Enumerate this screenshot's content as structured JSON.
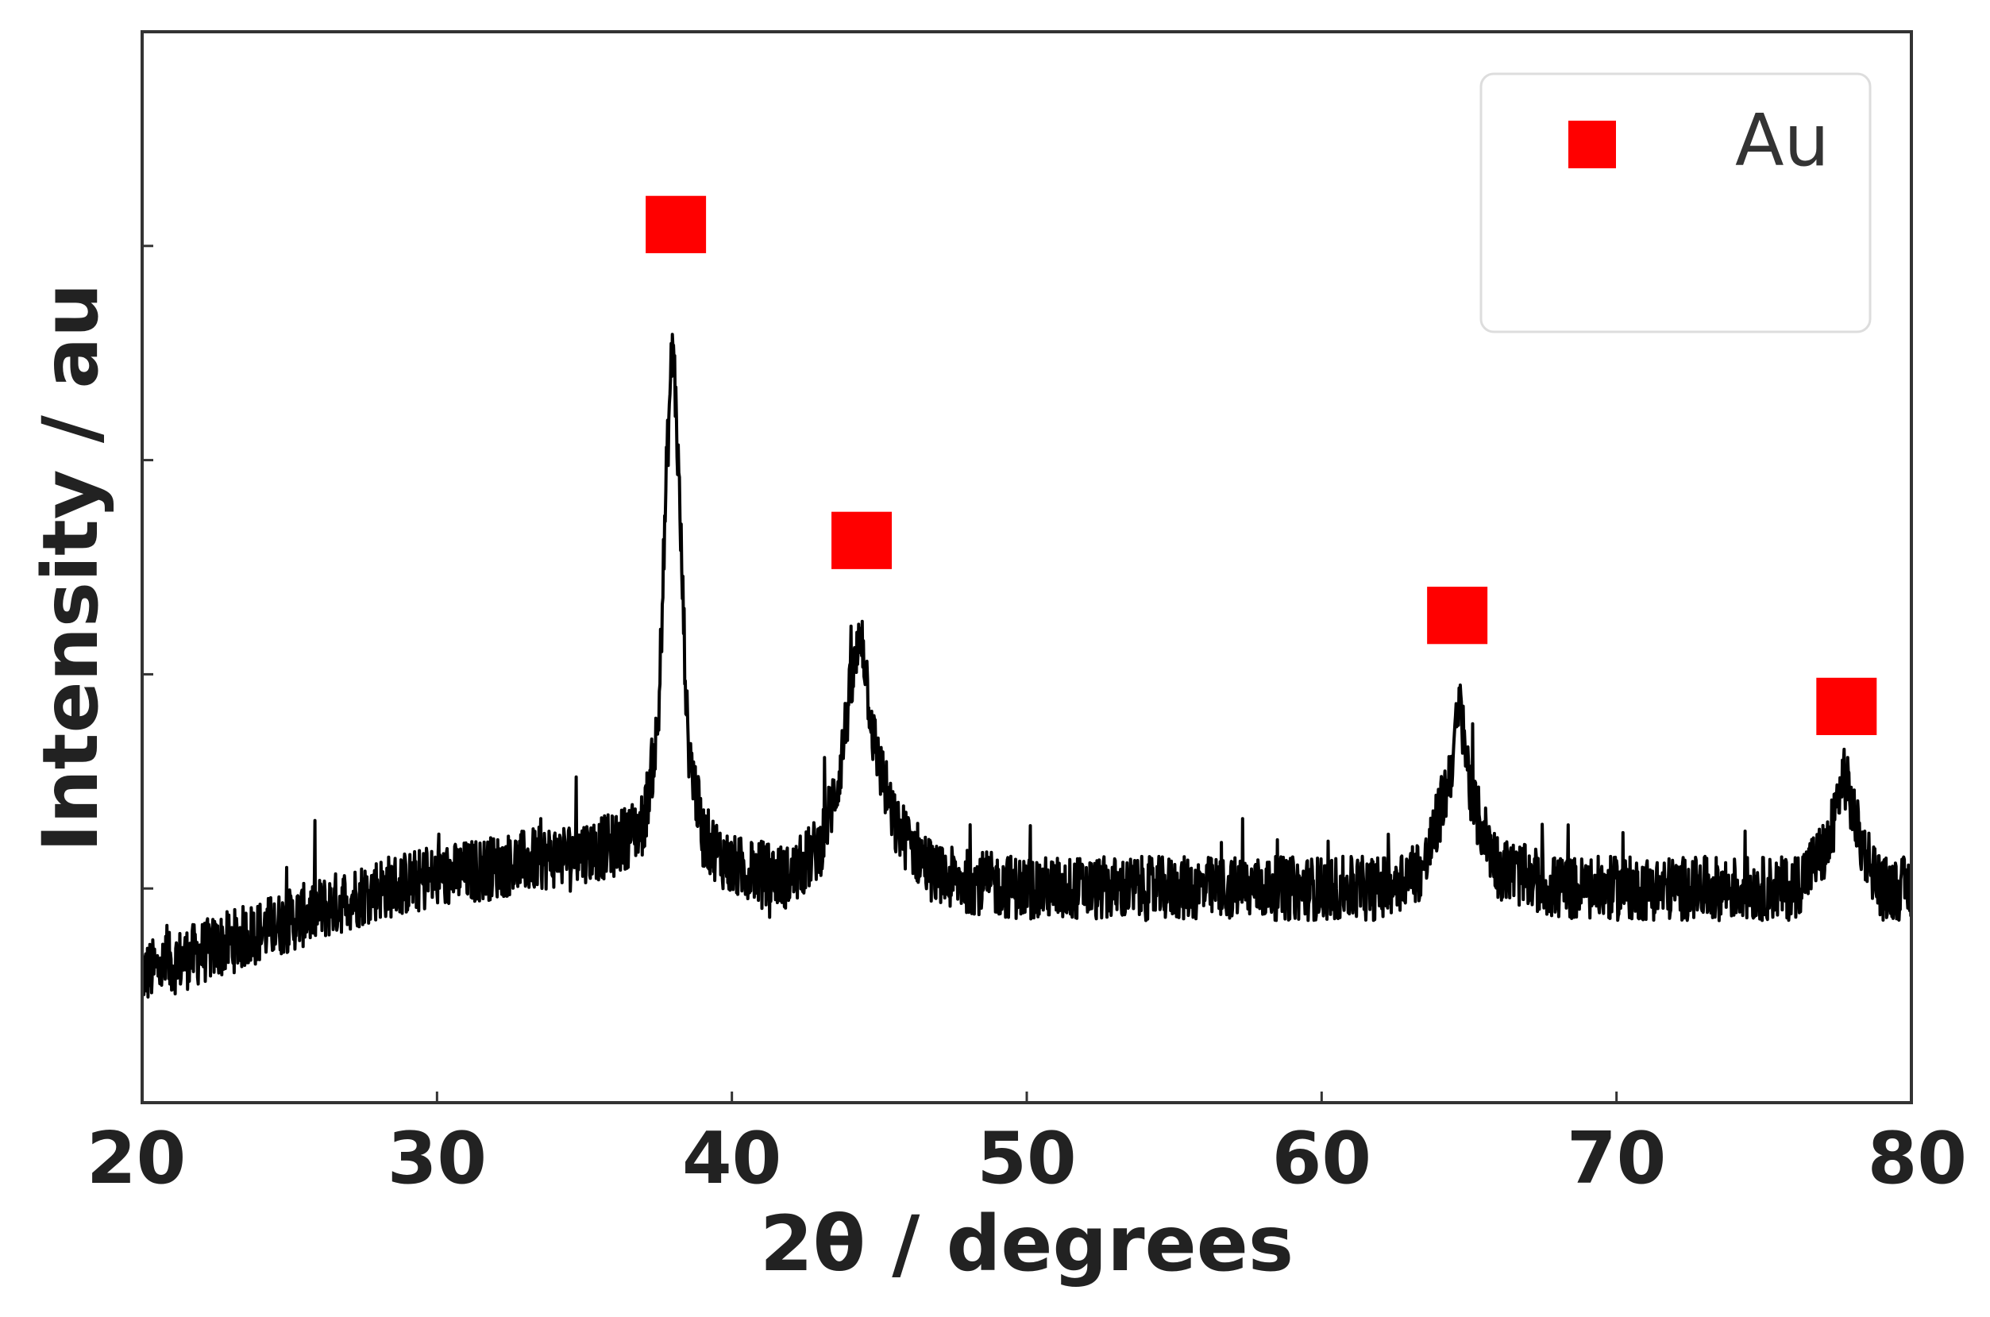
{
  "chart_data": {
    "type": "line",
    "xlabel": "2θ / degrees",
    "ylabel": "Intensity / au",
    "xlim": [
      20,
      80
    ],
    "ylim": [
      0,
      100
    ],
    "x_ticks": [
      "20",
      "30",
      "40",
      "50",
      "60",
      "70",
      "80"
    ],
    "y_ticks_labeled": false,
    "y_tick_values": [
      20,
      40,
      60,
      80
    ],
    "grid": false,
    "legend": {
      "position": "top-right",
      "entries": [
        {
          "label": "Au",
          "marker": "square",
          "color": "#ff0000"
        }
      ]
    },
    "series": [
      {
        "color": "#000000",
        "x": [
          20,
          22,
          24,
          26,
          28,
          30,
          32,
          34,
          36,
          37,
          37.5,
          37.8,
          38.0,
          38.2,
          38.5,
          39,
          40,
          42,
          43,
          43.6,
          44.0,
          44.4,
          44.8,
          45.5,
          47,
          50,
          55,
          60,
          62,
          63.5,
          64.3,
          64.7,
          65.1,
          66,
          68,
          70,
          72,
          74,
          76,
          77.2,
          77.7,
          78.2,
          79,
          80
        ],
        "y": [
          12,
          14,
          16,
          18,
          20,
          21,
          22,
          23,
          24,
          26,
          35,
          60,
          72,
          58,
          34,
          25,
          22,
          21,
          24,
          30,
          38,
          44,
          34,
          26,
          21,
          20,
          20,
          20,
          20,
          22,
          30,
          37,
          28,
          22,
          20,
          20,
          20,
          20,
          20,
          24,
          31,
          25,
          20,
          20
        ]
      }
    ],
    "markers": [
      {
        "x": 38.1,
        "y": 82,
        "color": "#ff0000"
      },
      {
        "x": 44.4,
        "y": 52.5,
        "color": "#ff0000"
      },
      {
        "x": 64.6,
        "y": 45.5,
        "color": "#ff0000"
      },
      {
        "x": 77.8,
        "y": 37,
        "color": "#ff0000"
      }
    ]
  }
}
